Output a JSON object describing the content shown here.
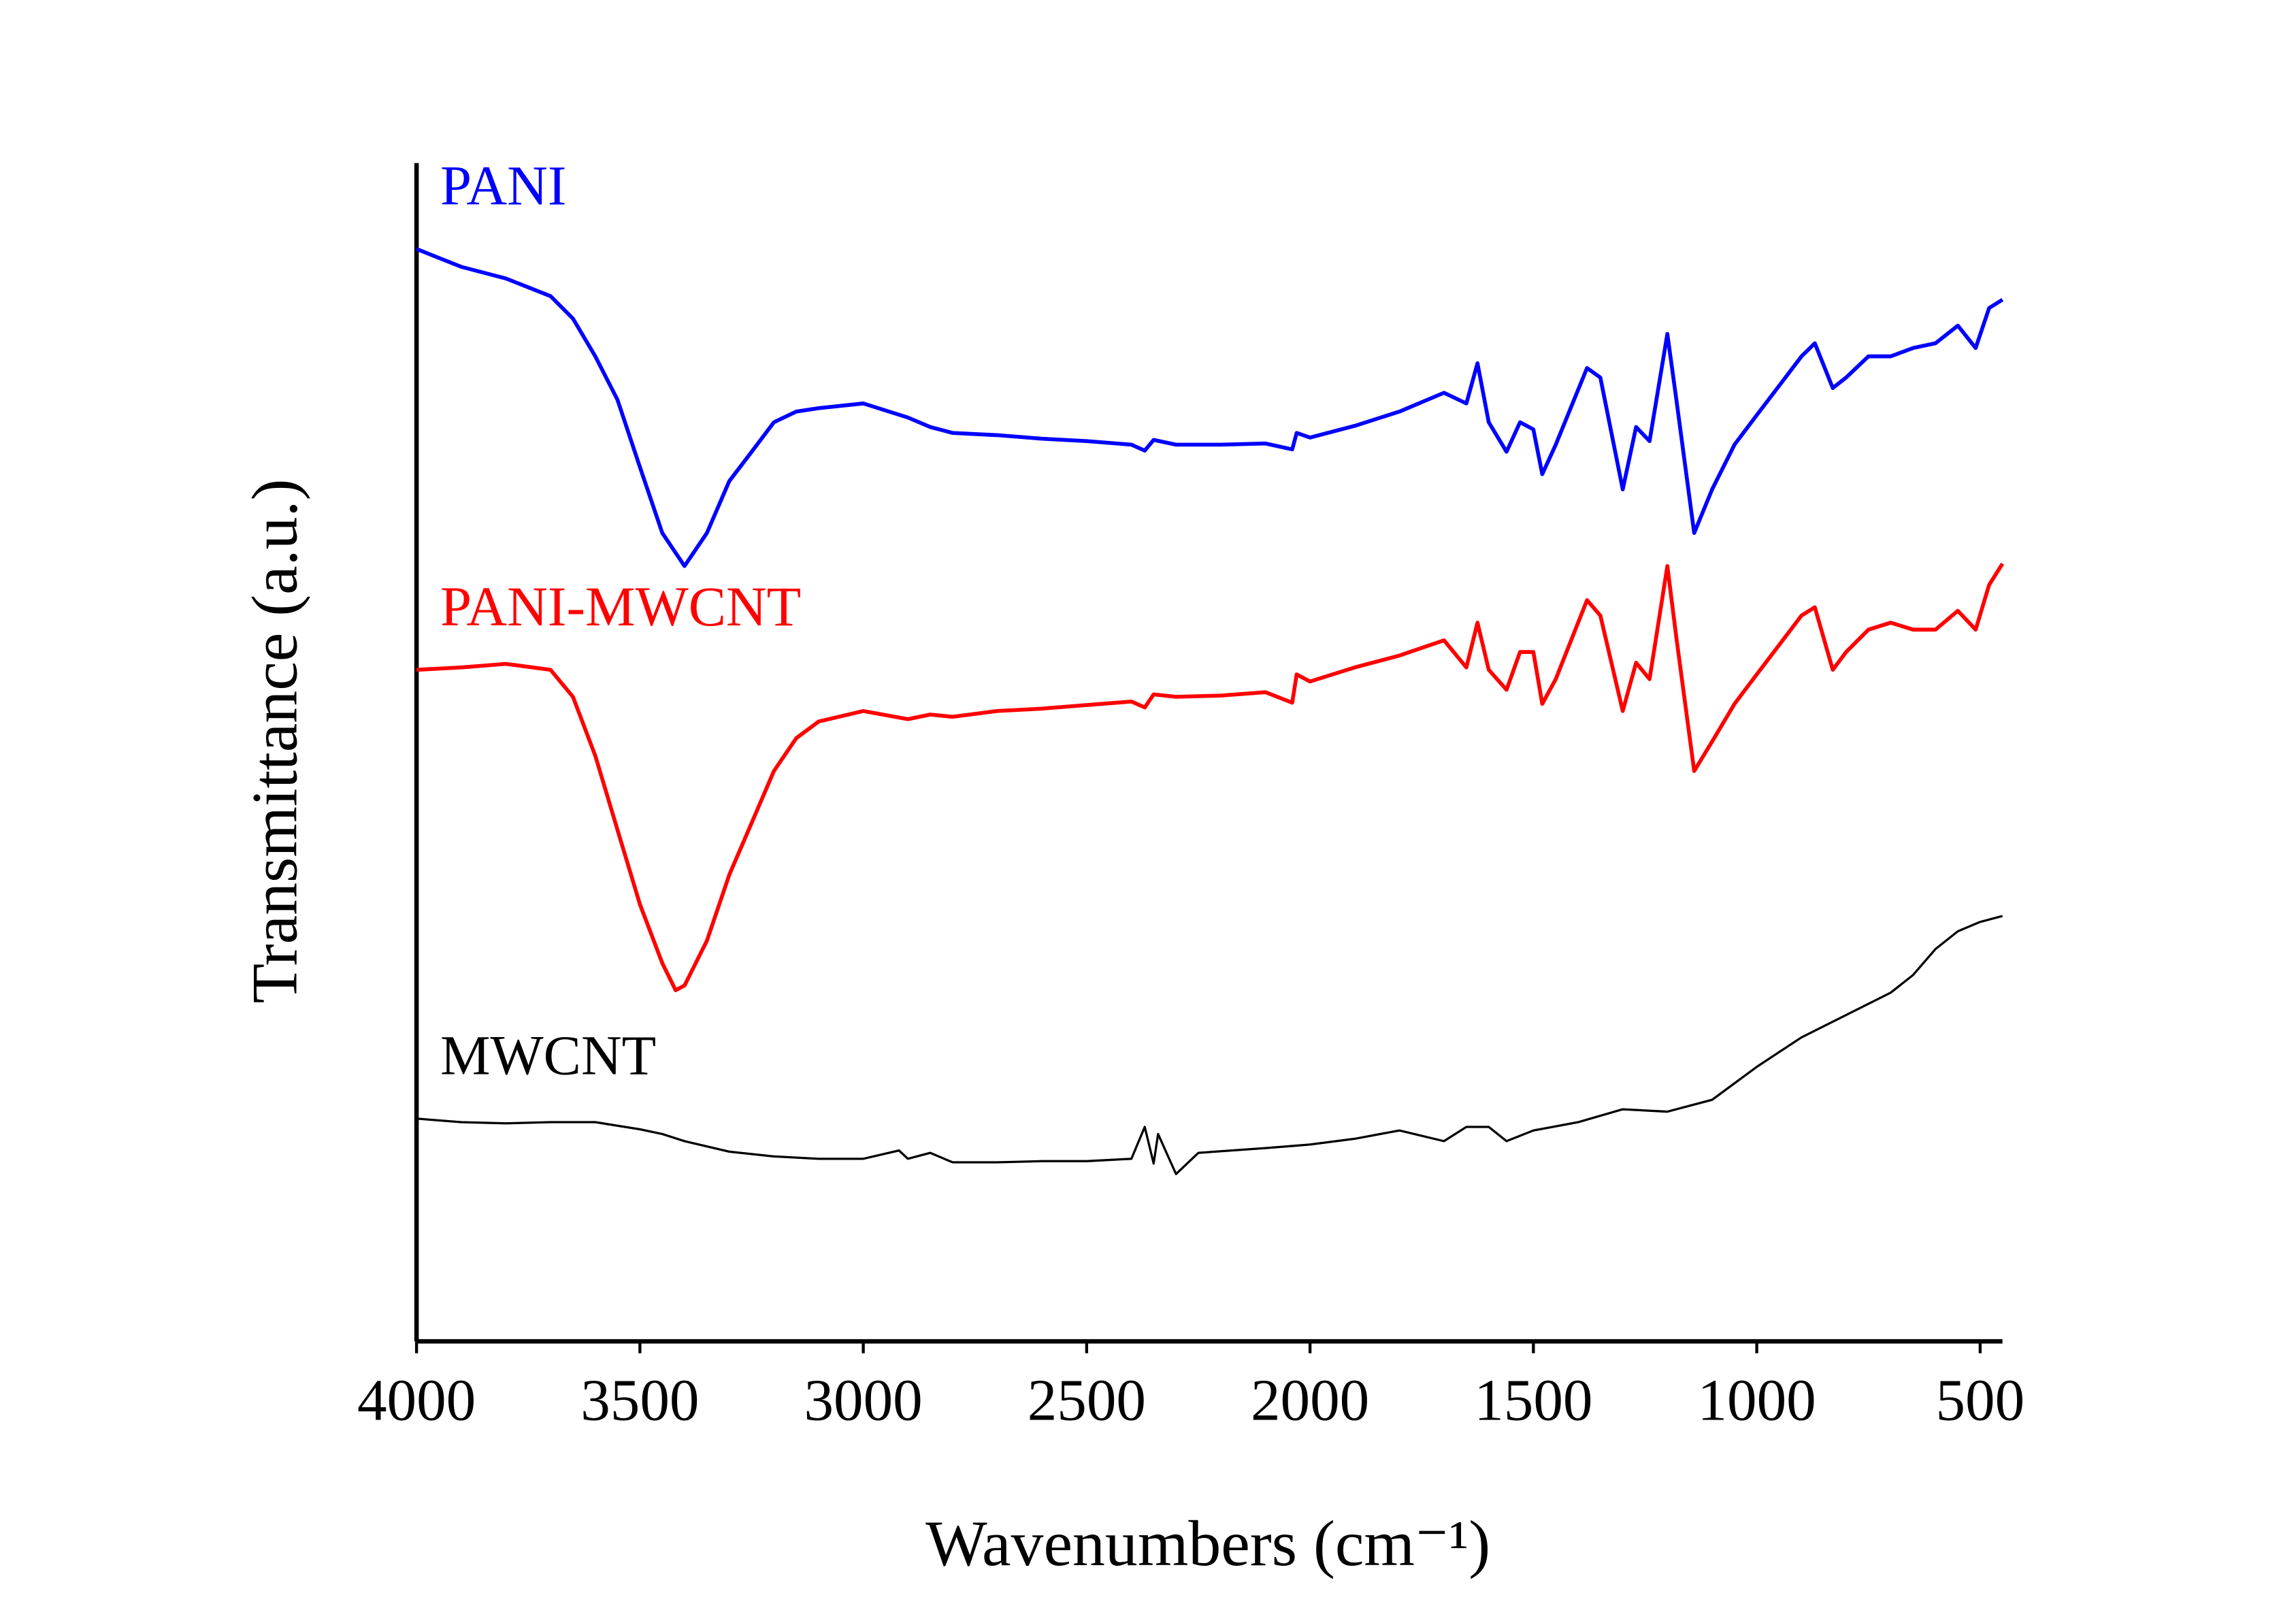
{
  "chart_data": {
    "type": "line",
    "x_label": "Wavenumbers (cm⁻¹)",
    "y_label": "Transmittance (a.u.)",
    "xlim": [
      4000,
      450
    ],
    "xticks": [
      4000,
      3500,
      3000,
      2500,
      2000,
      1500,
      1000,
      500
    ],
    "ylim": [
      0,
      100
    ],
    "series": [
      {
        "name": "PANI",
        "color": "#0000ff",
        "x": [
          4000,
          3900,
          3800,
          3700,
          3650,
          3600,
          3550,
          3500,
          3450,
          3400,
          3350,
          3300,
          3250,
          3200,
          3150,
          3100,
          3000,
          2900,
          2850,
          2800,
          2700,
          2600,
          2500,
          2400,
          2370,
          2350,
          2300,
          2200,
          2100,
          2040,
          2030,
          2000,
          1900,
          1800,
          1700,
          1650,
          1625,
          1600,
          1560,
          1530,
          1500,
          1480,
          1450,
          1380,
          1350,
          1300,
          1270,
          1240,
          1200,
          1180,
          1140,
          1100,
          1050,
          1000,
          950,
          900,
          870,
          830,
          800,
          750,
          700,
          650,
          600,
          550,
          510,
          480,
          450
        ],
        "values": [
          92.7,
          91.2,
          90.2,
          88.7,
          86.8,
          83.6,
          79.9,
          74.2,
          68.6,
          65.8,
          68.6,
          73.0,
          75.5,
          78.0,
          78.9,
          79.2,
          79.6,
          78.4,
          77.6,
          77.1,
          76.9,
          76.6,
          76.4,
          76.1,
          75.6,
          76.5,
          76.1,
          76.1,
          76.2,
          75.7,
          77.1,
          76.7,
          77.7,
          78.9,
          80.5,
          79.6,
          83.0,
          78.0,
          75.5,
          78.0,
          77.4,
          73.6,
          76.1,
          82.6,
          81.8,
          72.3,
          77.6,
          76.4,
          85.5,
          79.9,
          68.6,
          72.3,
          76.1,
          78.6,
          81.1,
          83.6,
          84.7,
          80.9,
          81.8,
          83.6,
          83.6,
          84.3,
          84.7,
          86.2,
          84.3,
          87.7,
          88.4
        ]
      },
      {
        "name": "PANI-MWCNT",
        "color": "#ff0000",
        "x": [
          4000,
          3900,
          3800,
          3700,
          3650,
          3600,
          3550,
          3500,
          3450,
          3420,
          3400,
          3350,
          3300,
          3250,
          3200,
          3150,
          3100,
          3000,
          2900,
          2850,
          2800,
          2700,
          2600,
          2500,
          2400,
          2370,
          2350,
          2300,
          2200,
          2100,
          2040,
          2030,
          2000,
          1900,
          1800,
          1700,
          1650,
          1625,
          1600,
          1560,
          1530,
          1500,
          1480,
          1450,
          1380,
          1350,
          1300,
          1270,
          1240,
          1200,
          1180,
          1140,
          1100,
          1050,
          1000,
          950,
          900,
          870,
          830,
          800,
          750,
          700,
          650,
          600,
          550,
          510,
          480,
          450
        ],
        "values": [
          57.0,
          57.2,
          57.5,
          57.0,
          54.7,
          49.7,
          43.4,
          37.1,
          32.1,
          29.8,
          30.2,
          34.0,
          39.6,
          44.0,
          48.4,
          51.2,
          52.6,
          53.5,
          52.8,
          53.2,
          53.0,
          53.5,
          53.7,
          54.0,
          54.3,
          53.8,
          54.9,
          54.7,
          54.8,
          55.1,
          54.2,
          56.6,
          56.0,
          57.2,
          58.2,
          59.5,
          57.2,
          61.0,
          57.0,
          55.3,
          58.5,
          58.5,
          54.1,
          56.2,
          62.9,
          61.6,
          53.5,
          57.6,
          56.2,
          65.8,
          59.7,
          48.4,
          50.9,
          54.1,
          56.6,
          59.1,
          61.6,
          62.3,
          57.0,
          58.5,
          60.4,
          61.0,
          60.4,
          60.4,
          62.0,
          60.4,
          64.2,
          66.0
        ]
      },
      {
        "name": "MWCNT",
        "color": "#000000",
        "x": [
          4000,
          3900,
          3800,
          3700,
          3600,
          3500,
          3450,
          3400,
          3300,
          3200,
          3100,
          3000,
          2920,
          2900,
          2850,
          2800,
          2700,
          2600,
          2500,
          2400,
          2370,
          2350,
          2340,
          2300,
          2250,
          2100,
          2000,
          1900,
          1800,
          1700,
          1650,
          1600,
          1560,
          1500,
          1400,
          1300,
          1200,
          1100,
          1000,
          900,
          800,
          700,
          650,
          600,
          550,
          500,
          450
        ],
        "values": [
          18.9,
          18.6,
          18.5,
          18.6,
          18.6,
          18.0,
          17.6,
          17.0,
          16.1,
          15.7,
          15.5,
          15.5,
          16.2,
          15.5,
          16.0,
          15.2,
          15.2,
          15.3,
          15.3,
          15.5,
          18.2,
          15.1,
          17.6,
          14.2,
          16.0,
          16.4,
          16.7,
          17.2,
          17.9,
          17.0,
          18.2,
          18.2,
          17.0,
          17.9,
          18.6,
          19.7,
          19.5,
          20.5,
          23.3,
          25.8,
          27.7,
          29.6,
          31.1,
          33.3,
          34.8,
          35.6,
          36.1
        ]
      }
    ]
  }
}
